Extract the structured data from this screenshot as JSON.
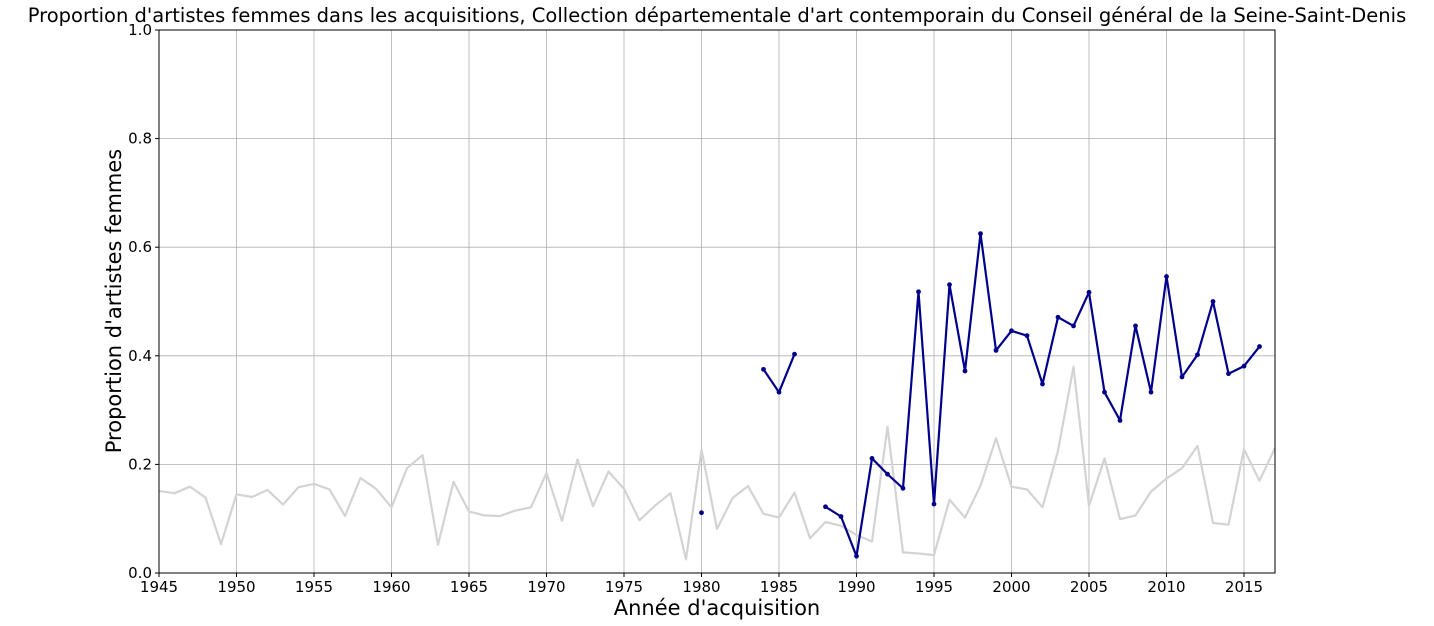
{
  "chart_data": {
    "type": "line",
    "title": "Proportion d'artistes femmes dans les acquisitions, Collection départementale d'art contemporain du Conseil général de la Seine-Saint-Denis",
    "xlabel": "Année d'acquisition",
    "ylabel": "Proportion d'artistes femmes",
    "xlim": [
      1945,
      2017
    ],
    "ylim": [
      0,
      1
    ],
    "xticks": [
      1945,
      1950,
      1955,
      1960,
      1965,
      1970,
      1975,
      1980,
      1985,
      1990,
      1995,
      2000,
      2005,
      2010,
      2015
    ],
    "yticks": [
      "0.0",
      "0.2",
      "0.4",
      "0.6",
      "0.8",
      "1.0"
    ],
    "grid": true,
    "legend": "none",
    "colors": {
      "reference": "#d3d3d3",
      "main": "#00008b"
    },
    "series": [
      {
        "style": "reference",
        "x": [
          1945,
          1946,
          1947,
          1948,
          1949,
          1950,
          1951,
          1952,
          1953,
          1954,
          1955,
          1956,
          1957,
          1958,
          1959,
          1960,
          1961,
          1962,
          1963,
          1964,
          1965,
          1966,
          1967,
          1968,
          1969,
          1970,
          1971,
          1972,
          1973,
          1974,
          1975,
          1976,
          1977,
          1978,
          1979,
          1980,
          1981,
          1982,
          1983,
          1984,
          1985,
          1986,
          1987,
          1988,
          1989,
          1990,
          1991,
          1992,
          1993,
          1994,
          1995,
          1996,
          1997,
          1998,
          1999,
          2000,
          2001,
          2002,
          2003,
          2004,
          2005,
          2006,
          2007,
          2008,
          2009,
          2010,
          2011,
          2012,
          2013,
          2014,
          2015,
          2016,
          2017
        ],
        "y": [
          0.151,
          0.147,
          0.159,
          0.139,
          0.053,
          0.145,
          0.14,
          0.153,
          0.126,
          0.158,
          0.164,
          0.154,
          0.105,
          0.175,
          0.155,
          0.121,
          0.193,
          0.217,
          0.052,
          0.168,
          0.113,
          0.106,
          0.105,
          0.115,
          0.121,
          0.184,
          0.096,
          0.209,
          0.123,
          0.187,
          0.155,
          0.097,
          0.124,
          0.147,
          0.025,
          0.227,
          0.081,
          0.138,
          0.16,
          0.109,
          0.102,
          0.148,
          0.064,
          0.094,
          0.087,
          0.07,
          0.058,
          0.269,
          0.038,
          0.036,
          0.033,
          0.135,
          0.102,
          0.161,
          0.248,
          0.159,
          0.154,
          0.121,
          0.225,
          0.38,
          0.124,
          0.211,
          0.099,
          0.106,
          0.15,
          0.174,
          0.193,
          0.234,
          0.092,
          0.089,
          0.228,
          0.17,
          0.23
        ]
      },
      {
        "style": "main",
        "x": [
          1980,
          1984,
          1985,
          1986,
          1988,
          1989,
          1990,
          1991,
          1992,
          1993,
          1994,
          1995,
          1996,
          1997,
          1998,
          1999,
          2000,
          2001,
          2002,
          2003,
          2004,
          2005,
          2006,
          2007,
          2008,
          2009,
          2010,
          2011,
          2012,
          2013,
          2014,
          2015,
          2016
        ],
        "y": [
          0.111,
          0.375,
          0.333,
          0.403,
          0.122,
          0.104,
          0.031,
          0.211,
          0.182,
          0.156,
          0.518,
          0.127,
          0.531,
          0.372,
          0.625,
          0.41,
          0.446,
          0.437,
          0.348,
          0.471,
          0.455,
          0.517,
          0.333,
          0.281,
          0.455,
          0.333,
          0.546,
          0.361,
          0.402,
          0.5,
          0.367,
          0.381,
          0.417
        ]
      }
    ]
  }
}
